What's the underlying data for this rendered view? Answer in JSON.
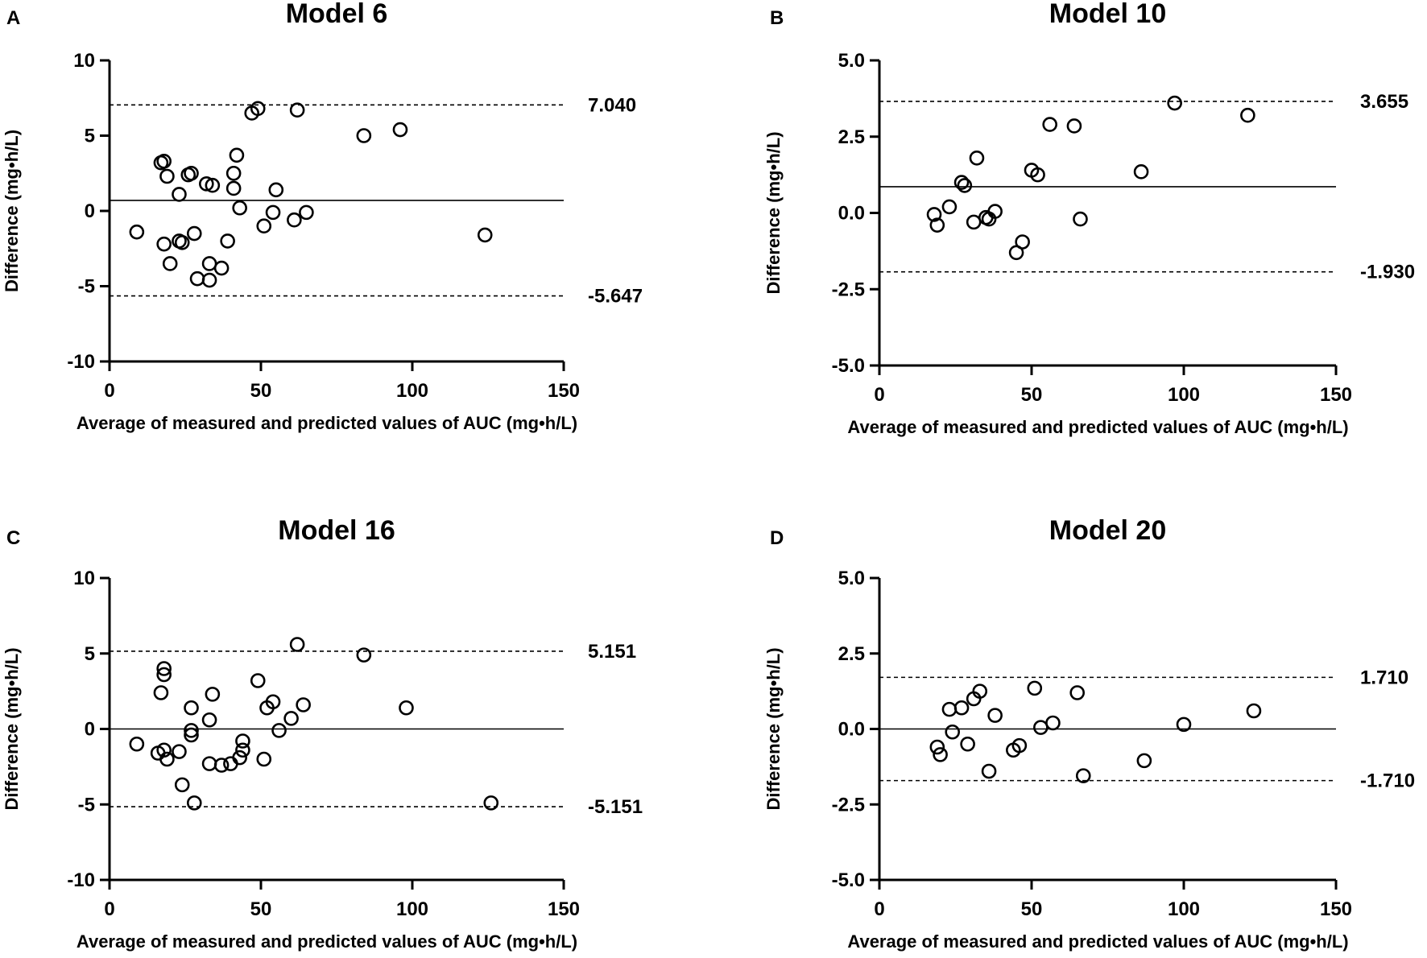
{
  "chart_data": [
    {
      "type": "scatter",
      "panel_label": "A",
      "title": "Model 6",
      "xlabel": "Average of measured and predicted values of AUC (mg•h/L)",
      "ylabel": "Difference (mg•h/L)",
      "xlim": [
        0,
        150
      ],
      "ylim": [
        -10,
        10
      ],
      "x_ticks": [
        0,
        50,
        100,
        150
      ],
      "x_tick_labels": [
        "0",
        "50",
        "100",
        "150"
      ],
      "y_ticks": [
        10,
        5,
        0,
        -5,
        -10
      ],
      "y_tick_labels": [
        "10",
        "5",
        "0",
        "-5",
        "-10"
      ],
      "mean_difference": 0.7,
      "upper_loa": 7.04,
      "lower_loa": -5.647,
      "upper_loa_label": "7.040",
      "lower_loa_label": "-5.647",
      "points": [
        {
          "x": 9,
          "y": -1.4
        },
        {
          "x": 17,
          "y": 3.2
        },
        {
          "x": 18,
          "y": 3.3
        },
        {
          "x": 18,
          "y": -2.2
        },
        {
          "x": 19,
          "y": 2.3
        },
        {
          "x": 20,
          "y": -3.5
        },
        {
          "x": 23,
          "y": 1.1
        },
        {
          "x": 23,
          "y": -2.0
        },
        {
          "x": 24,
          "y": -2.1
        },
        {
          "x": 26,
          "y": 2.4
        },
        {
          "x": 27,
          "y": 2.5
        },
        {
          "x": 28,
          "y": -1.5
        },
        {
          "x": 29,
          "y": -4.5
        },
        {
          "x": 32,
          "y": 1.8
        },
        {
          "x": 33,
          "y": -4.6
        },
        {
          "x": 33,
          "y": -3.5
        },
        {
          "x": 34,
          "y": 1.7
        },
        {
          "x": 37,
          "y": -3.8
        },
        {
          "x": 39,
          "y": -2.0
        },
        {
          "x": 41,
          "y": 2.5
        },
        {
          "x": 41,
          "y": 1.5
        },
        {
          "x": 42,
          "y": 3.7
        },
        {
          "x": 43,
          "y": 0.2
        },
        {
          "x": 47,
          "y": 6.5
        },
        {
          "x": 49,
          "y": 6.8
        },
        {
          "x": 51,
          "y": -1.0
        },
        {
          "x": 54,
          "y": -0.1
        },
        {
          "x": 55,
          "y": 1.4
        },
        {
          "x": 61,
          "y": -0.6
        },
        {
          "x": 62,
          "y": 6.7
        },
        {
          "x": 65,
          "y": -0.1
        },
        {
          "x": 84,
          "y": 5.0
        },
        {
          "x": 96,
          "y": 5.4
        },
        {
          "x": 124,
          "y": -1.6
        }
      ]
    },
    {
      "type": "scatter",
      "panel_label": "B",
      "title": "Model 10",
      "xlabel": "Average of measured and predicted values of AUC (mg•h/L)",
      "ylabel": "Difference (mg•h/L)",
      "xlim": [
        0,
        150
      ],
      "ylim": [
        -5,
        5
      ],
      "x_ticks": [
        0,
        50,
        100,
        150
      ],
      "x_tick_labels": [
        "0",
        "50",
        "100",
        "150"
      ],
      "y_ticks": [
        5,
        2.5,
        0,
        -2.5,
        -5
      ],
      "y_tick_labels": [
        "5.0",
        "2.5",
        "0.0",
        "-2.5",
        "-5.0"
      ],
      "mean_difference": 0.86,
      "upper_loa": 3.655,
      "lower_loa": -1.93,
      "upper_loa_label": "3.655",
      "lower_loa_label": "-1.930",
      "points": [
        {
          "x": 18,
          "y": -0.05
        },
        {
          "x": 19,
          "y": -0.4
        },
        {
          "x": 23,
          "y": 0.2
        },
        {
          "x": 27,
          "y": 1.0
        },
        {
          "x": 28,
          "y": 0.9
        },
        {
          "x": 31,
          "y": -0.3
        },
        {
          "x": 32,
          "y": 1.8
        },
        {
          "x": 35,
          "y": -0.15
        },
        {
          "x": 36,
          "y": -0.2
        },
        {
          "x": 38,
          "y": 0.05
        },
        {
          "x": 45,
          "y": -1.3
        },
        {
          "x": 47,
          "y": -0.95
        },
        {
          "x": 50,
          "y": 1.4
        },
        {
          "x": 52,
          "y": 1.25
        },
        {
          "x": 56,
          "y": 2.9
        },
        {
          "x": 64,
          "y": 2.85
        },
        {
          "x": 66,
          "y": -0.2
        },
        {
          "x": 86,
          "y": 1.35
        },
        {
          "x": 97,
          "y": 3.6
        },
        {
          "x": 121,
          "y": 3.2
        }
      ]
    },
    {
      "type": "scatter",
      "panel_label": "C",
      "title": "Model 16",
      "xlabel": "Average of measured and predicted values of AUC (mg•h/L)",
      "ylabel": "Difference (mg•h/L)",
      "xlim": [
        0,
        150
      ],
      "ylim": [
        -10,
        10
      ],
      "x_ticks": [
        0,
        50,
        100,
        150
      ],
      "x_tick_labels": [
        "0",
        "50",
        "100",
        "150"
      ],
      "y_ticks": [
        10,
        5,
        0,
        -5,
        -10
      ],
      "y_tick_labels": [
        "10",
        "5",
        "0",
        "-5",
        "-10"
      ],
      "mean_difference": 0,
      "upper_loa": 5.151,
      "lower_loa": -5.151,
      "upper_loa_label": "5.151",
      "lower_loa_label": "-5.151",
      "points": [
        {
          "x": 9,
          "y": -1.0
        },
        {
          "x": 16,
          "y": -1.6
        },
        {
          "x": 17,
          "y": 2.4
        },
        {
          "x": 18,
          "y": 4.0
        },
        {
          "x": 18,
          "y": 3.6
        },
        {
          "x": 18,
          "y": -1.4
        },
        {
          "x": 19,
          "y": -2.0
        },
        {
          "x": 23,
          "y": -1.5
        },
        {
          "x": 24,
          "y": -3.7
        },
        {
          "x": 27,
          "y": -0.1
        },
        {
          "x": 27,
          "y": -0.4
        },
        {
          "x": 27,
          "y": 1.4
        },
        {
          "x": 28,
          "y": -4.9
        },
        {
          "x": 33,
          "y": 0.6
        },
        {
          "x": 33,
          "y": -2.3
        },
        {
          "x": 34,
          "y": 2.3
        },
        {
          "x": 37,
          "y": -2.4
        },
        {
          "x": 40,
          "y": -2.3
        },
        {
          "x": 43,
          "y": -1.9
        },
        {
          "x": 44,
          "y": -1.4
        },
        {
          "x": 44,
          "y": -0.8
        },
        {
          "x": 49,
          "y": 3.2
        },
        {
          "x": 51,
          "y": -2.0
        },
        {
          "x": 52,
          "y": 1.4
        },
        {
          "x": 54,
          "y": 1.8
        },
        {
          "x": 56,
          "y": -0.1
        },
        {
          "x": 60,
          "y": 0.7
        },
        {
          "x": 62,
          "y": 5.6
        },
        {
          "x": 64,
          "y": 1.6
        },
        {
          "x": 84,
          "y": 4.9
        },
        {
          "x": 98,
          "y": 1.4
        },
        {
          "x": 126,
          "y": -4.9
        }
      ]
    },
    {
      "type": "scatter",
      "panel_label": "D",
      "title": "Model 20",
      "xlabel": "Average of measured and predicted values of AUC (mg•h/L)",
      "ylabel": "Difference (mg•h/L)",
      "xlim": [
        0,
        150
      ],
      "ylim": [
        -5,
        5
      ],
      "x_ticks": [
        0,
        50,
        100,
        150
      ],
      "x_tick_labels": [
        "0",
        "50",
        "100",
        "150"
      ],
      "y_ticks": [
        5,
        2.5,
        0,
        -2.5,
        -5
      ],
      "y_tick_labels": [
        "5.0",
        "2.5",
        "0.0",
        "-2.5",
        "-5.0"
      ],
      "mean_difference": 0,
      "upper_loa": 1.71,
      "lower_loa": -1.71,
      "upper_loa_label": "1.710",
      "lower_loa_label": "-1.710",
      "points": [
        {
          "x": 19,
          "y": -0.6
        },
        {
          "x": 20,
          "y": -0.85
        },
        {
          "x": 23,
          "y": 0.65
        },
        {
          "x": 24,
          "y": -0.1
        },
        {
          "x": 27,
          "y": 0.7
        },
        {
          "x": 29,
          "y": -0.5
        },
        {
          "x": 31,
          "y": 1.0
        },
        {
          "x": 33,
          "y": 1.25
        },
        {
          "x": 36,
          "y": -1.4
        },
        {
          "x": 38,
          "y": 0.45
        },
        {
          "x": 44,
          "y": -0.7
        },
        {
          "x": 46,
          "y": -0.55
        },
        {
          "x": 51,
          "y": 1.35
        },
        {
          "x": 53,
          "y": 0.05
        },
        {
          "x": 57,
          "y": 0.2
        },
        {
          "x": 65,
          "y": 1.2
        },
        {
          "x": 67,
          "y": -1.55
        },
        {
          "x": 87,
          "y": -1.05
        },
        {
          "x": 100,
          "y": 0.15
        },
        {
          "x": 123,
          "y": 0.6
        }
      ]
    }
  ]
}
